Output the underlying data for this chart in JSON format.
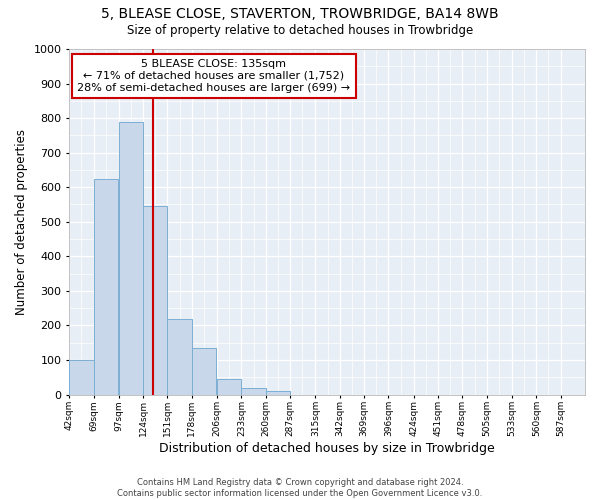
{
  "title": "5, BLEASE CLOSE, STAVERTON, TROWBRIDGE, BA14 8WB",
  "subtitle": "Size of property relative to detached houses in Trowbridge",
  "xlabel": "Distribution of detached houses by size in Trowbridge",
  "ylabel": "Number of detached properties",
  "footer_line1": "Contains HM Land Registry data © Crown copyright and database right 2024.",
  "footer_line2": "Contains public sector information licensed under the Open Government Licence v3.0.",
  "annotation_line1": "5 BLEASE CLOSE: 135sqm",
  "annotation_line2": "← 71% of detached houses are smaller (1,752)",
  "annotation_line3": "28% of semi-detached houses are larger (699) →",
  "property_size": 135,
  "bar_color": "#c8d8ea",
  "bar_edge_color": "#7bafd4",
  "ref_line_color": "#cc0000",
  "annotation_box_edge": "#cc0000",
  "background_color": "#ffffff",
  "plot_bg_color": "#e8eef5",
  "grid_color": "#ffffff",
  "bins_left_edges": [
    42,
    69,
    97,
    124,
    151,
    178,
    206,
    233,
    260,
    287,
    315,
    342,
    369,
    396,
    424,
    451,
    478,
    505,
    533,
    560
  ],
  "bin_width": 27,
  "bar_heights": [
    100,
    625,
    790,
    545,
    220,
    135,
    45,
    20,
    10,
    0,
    0,
    0,
    0,
    0,
    0,
    0,
    0,
    0,
    0,
    0
  ],
  "xlim_left": 42,
  "xlim_right": 614,
  "ylim": [
    0,
    1000
  ],
  "yticks": [
    0,
    100,
    200,
    300,
    400,
    500,
    600,
    700,
    800,
    900,
    1000
  ],
  "xtick_values": [
    42,
    69,
    97,
    124,
    151,
    178,
    206,
    233,
    260,
    287,
    315,
    342,
    369,
    396,
    424,
    451,
    478,
    505,
    533,
    560,
    587
  ]
}
